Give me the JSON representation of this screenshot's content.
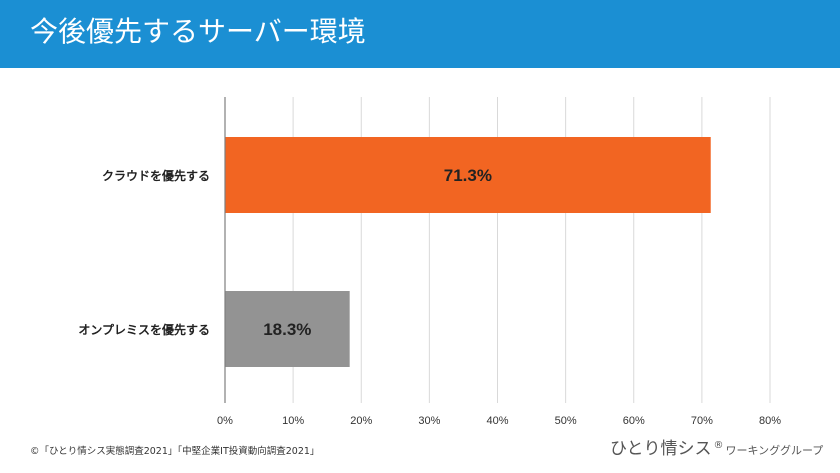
{
  "header": {
    "title": "今後優先するサーバー環境"
  },
  "chart_data": {
    "type": "bar",
    "orientation": "horizontal",
    "categories": [
      "クラウドを優先する",
      "オンプレミスを優先する"
    ],
    "values": [
      71.3,
      18.3
    ],
    "data_labels": [
      "71.3%",
      "18.3%"
    ],
    "colors": [
      "#f26522",
      "#939393"
    ],
    "xlim": [
      0,
      80
    ],
    "x_ticks": [
      0,
      10,
      20,
      30,
      40,
      50,
      60,
      70,
      80
    ],
    "x_tick_labels": [
      "0%",
      "10%",
      "20%",
      "30%",
      "40%",
      "50%",
      "60%",
      "70%",
      "80%"
    ],
    "grid": true,
    "title": "",
    "xlabel": "",
    "ylabel": ""
  },
  "footer": {
    "source": "©「ひとり情シス実態調査2021」「中堅企業IT投資動向調査2021」",
    "brand_main": "ひとり情シス",
    "brand_reg": "®",
    "brand_sub": "ワーキンググループ"
  }
}
